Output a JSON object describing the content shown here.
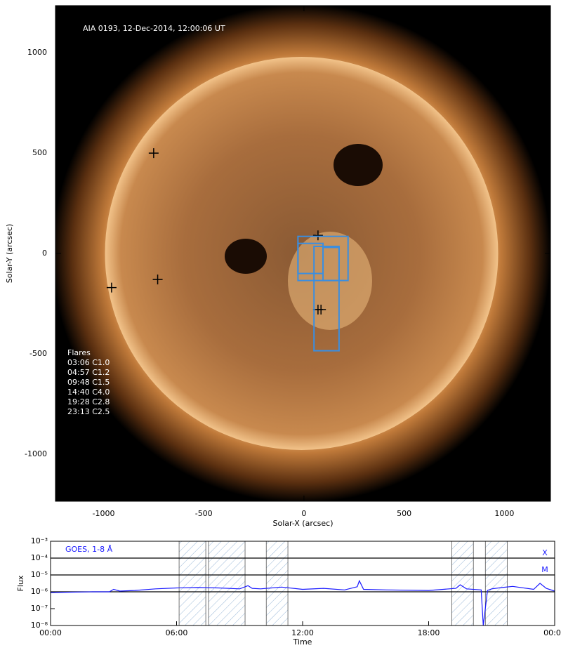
{
  "chart_data": [
    {
      "type": "image",
      "title": "AIA 0193, 12-Dec-2014, 12:00:06 UT",
      "x_label": "Solar-X (arcsec)",
      "y_label": "Solar-Y (arcsec)",
      "xlim": [
        -1240,
        1230
      ],
      "ylim": [
        -1235,
        1235
      ],
      "xticks": [
        -1000,
        -500,
        0,
        500,
        1000
      ],
      "yticks": [
        -1000,
        -500,
        0,
        500,
        1000
      ],
      "markers": {
        "color": "#000000",
        "x": [
          -750,
          70,
          -960,
          -730,
          70,
          85
        ],
        "y": [
          500,
          90,
          -170,
          -130,
          -280,
          -280
        ]
      },
      "boxes": {
        "color": "#3a8ee0",
        "items": [
          {
            "x": [
              -30,
              220
            ],
            "y": [
              -135,
              85
            ]
          },
          {
            "x": [
              -30,
              95
            ],
            "y": [
              -100,
              50
            ]
          },
          {
            "x": [
              50,
              175
            ],
            "y": [
              -485,
              35
            ]
          },
          {
            "x": [
              95,
              175
            ],
            "y": [
              -135,
              30
            ]
          }
        ]
      },
      "legend_title": "Flares",
      "flares": [
        "03:06 C1.0",
        "04:57 C1.2",
        "09:48 C1.5",
        "14:40 C4.0",
        "19:28 C2.8",
        "23:13 C2.5"
      ]
    },
    {
      "type": "line",
      "x_label": "Time",
      "y_label": "Flux",
      "log_y": true,
      "xlim": [
        0,
        24
      ],
      "ylim": [
        1e-08,
        0.001
      ],
      "xticks": [
        {
          "value": 0,
          "label": "00:00"
        },
        {
          "value": 6,
          "label": "06:00"
        },
        {
          "value": 12,
          "label": "12:00"
        },
        {
          "value": 18,
          "label": "18:00"
        },
        {
          "value": 24,
          "label": "00:00"
        }
      ],
      "yticks": [
        {
          "value": 1e-08,
          "label": "10⁻⁸"
        },
        {
          "value": 1e-07,
          "label": "10⁻⁷"
        },
        {
          "value": 1e-06,
          "label": "10⁻⁶"
        },
        {
          "value": 1e-05,
          "label": "10⁻⁵"
        },
        {
          "value": 0.0001,
          "label": "10⁻⁴"
        },
        {
          "value": 0.001,
          "label": "10⁻³"
        }
      ],
      "hlines": [
        1e-06,
        1e-05,
        0.0001
      ],
      "class_labels": [
        {
          "value": 0.0001,
          "label": "X"
        },
        {
          "value": 1e-05,
          "label": "M"
        }
      ],
      "intervals": [
        [
          6.12,
          7.39
        ],
        [
          7.52,
          9.26
        ],
        [
          10.27,
          11.3
        ],
        [
          19.1,
          20.13
        ],
        [
          20.7,
          21.74
        ]
      ],
      "x": [
        0,
        1,
        2,
        2.8,
        3.0,
        3.3,
        4,
        5,
        6,
        7,
        8,
        9,
        9.4,
        9.6,
        10,
        11,
        12,
        13,
        14,
        14.6,
        14.7,
        14.9,
        16,
        18,
        19.3,
        19.5,
        19.8,
        20.5,
        20.6,
        20.8,
        21,
        21.5,
        22,
        23,
        23.3,
        23.6,
        24
      ],
      "series": [
        {
          "name": "GOES, 1-8 Å",
          "color": "#1a1aff",
          "values": [
            9e-07,
            9.5e-07,
            1e-06,
            1e-06,
            1.4e-06,
            1.1e-06,
            1.2e-06,
            1.5e-06,
            1.7e-06,
            1.8e-06,
            1.7e-06,
            1.5e-06,
            2.3e-06,
            1.6e-06,
            1.5e-06,
            1.9e-06,
            1.4e-06,
            1.6e-06,
            1.3e-06,
            2e-06,
            4.5e-06,
            1.4e-06,
            1.3e-06,
            1.2e-06,
            1.6e-06,
            2.6e-06,
            1.5e-06,
            1.3e-06,
            1e-08,
            1.2e-06,
            1.5e-06,
            1.8e-06,
            2.1e-06,
            1.4e-06,
            3.2e-06,
            1.6e-06,
            1.1e-06
          ]
        }
      ]
    }
  ]
}
